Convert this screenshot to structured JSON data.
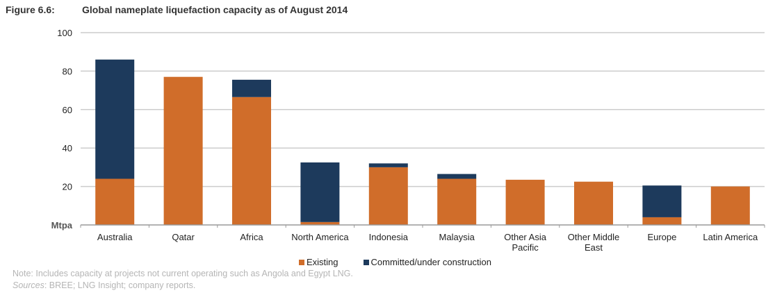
{
  "figure": {
    "label": "Figure 6.6:",
    "title": "Global nameplate liquefaction capacity as of August 2014"
  },
  "colors": {
    "existing": "#D06D2A",
    "committed": "#1D3A5C",
    "grid": "#cccccc",
    "axis": "#999999"
  },
  "legend": {
    "items": [
      {
        "label": "Existing",
        "color": "#D06D2A"
      },
      {
        "label": "Committed/under construction",
        "color": "#1D3A5C"
      }
    ]
  },
  "notes": {
    "note": "Note: Includes capacity at projects not current operating such as Angola and Egypt LNG.",
    "sources_label": "Sources",
    "sources_text": ": BREE; LNG Insight; company reports."
  },
  "chart_data": {
    "type": "bar",
    "stacked": true,
    "title": "Global nameplate liquefaction capacity as of August 2014",
    "xlabel": "",
    "ylabel": "Mtpa",
    "ylim": [
      0,
      100
    ],
    "yticks": [
      20,
      40,
      60,
      80,
      100
    ],
    "grid": true,
    "legend_position": "bottom",
    "categories": [
      [
        "Australia"
      ],
      [
        "Qatar"
      ],
      [
        "Africa"
      ],
      [
        "North America"
      ],
      [
        "Indonesia"
      ],
      [
        "Malaysia"
      ],
      [
        "Other Asia",
        "Pacific"
      ],
      [
        "Other Middle",
        "East"
      ],
      [
        "Europe"
      ],
      [
        "Latin America"
      ]
    ],
    "series": [
      {
        "name": "Existing",
        "color": "#D06D2A",
        "values": [
          24,
          77,
          66.5,
          1.5,
          30,
          24,
          23.5,
          22.5,
          4,
          20
        ]
      },
      {
        "name": "Committed/under construction",
        "color": "#1D3A5C",
        "values": [
          62,
          0,
          9,
          31,
          2,
          2.5,
          0,
          0,
          16.5,
          0
        ]
      }
    ]
  }
}
